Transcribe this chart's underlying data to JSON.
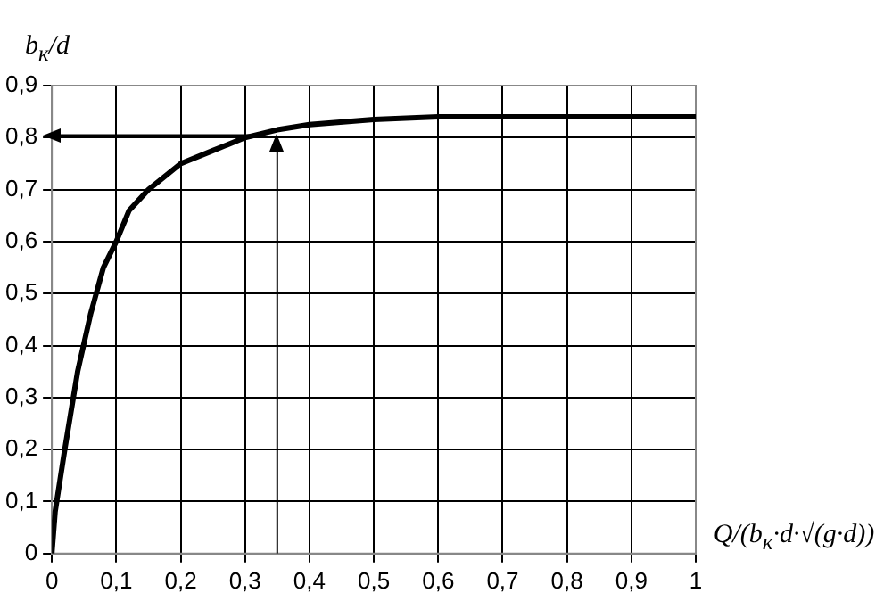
{
  "chart_data": {
    "type": "line",
    "ylabel": "b$_{к}$/d",
    "xlabel": "Q/(b$_{к}$·d·√(g·d))",
    "xlim": [
      0,
      1
    ],
    "ylim": [
      0,
      0.9
    ],
    "xticks": [
      0,
      {
        "value": 0.1,
        "label": "0,1"
      },
      {
        "value": 0.2,
        "label": "0,2"
      },
      {
        "value": 0.3,
        "label": "0,3"
      },
      {
        "value": 0.4,
        "label": "0,4"
      },
      {
        "value": 0.5,
        "label": "0,5"
      },
      {
        "value": 0.6,
        "label": "0,6"
      },
      {
        "value": 0.7,
        "label": "0,7"
      },
      {
        "value": 0.8,
        "label": "0,8"
      },
      {
        "value": 0.9,
        "label": "0,9"
      },
      1
    ],
    "yticks": [
      0,
      {
        "value": 0.1,
        "label": "0,1"
      },
      {
        "value": 0.2,
        "label": "0,2"
      },
      {
        "value": 0.3,
        "label": "0,3"
      },
      {
        "value": 0.4,
        "label": "0,4"
      },
      {
        "value": 0.5,
        "label": "0,5"
      },
      {
        "value": 0.6,
        "label": "0,6"
      },
      {
        "value": 0.7,
        "label": "0,7"
      },
      {
        "value": 0.8,
        "label": "0,8"
      },
      {
        "value": 0.9,
        "label": "0,9"
      }
    ],
    "grid": true,
    "legend": false,
    "line_style": "solid",
    "series": [
      {
        "color": "#000000",
        "x": [
          0,
          0.005,
          0.02,
          0.04,
          0.06,
          0.08,
          0.1,
          0.12,
          0.15,
          0.2,
          0.25,
          0.3,
          0.35,
          0.4,
          0.5,
          0.6,
          1
        ],
        "values": [
          0,
          0.08,
          0.2,
          0.35,
          0.46,
          0.55,
          0.6,
          0.66,
          0.7,
          0.75,
          0.775,
          0.8,
          0.815,
          0.825,
          0.835,
          0.84,
          0.84
        ]
      },
      {
        "color": "#000000",
        "x": [
          0.35,
          0.35
        ],
        "values": [
          0,
          0.79
        ]
      },
      {
        "color": "#000000",
        "x": [
          0.32,
          0
        ],
        "values": [
          0.805,
          0.805
        ]
      }
    ]
  }
}
